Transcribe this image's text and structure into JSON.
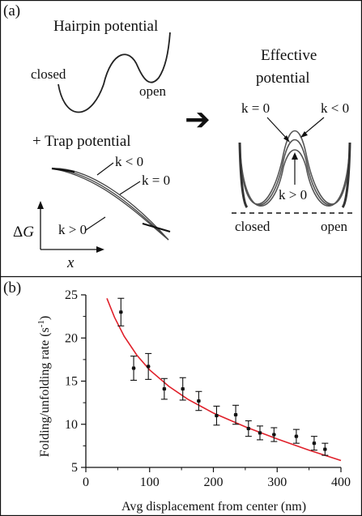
{
  "panel_a": {
    "label": "(a)",
    "hairpin_title": "Hairpin potential",
    "closed_label": "closed",
    "open_label": "open",
    "trap_title": "+ Trap potential",
    "trap_k_neg": "k < 0",
    "trap_k_zero": "k = 0",
    "trap_k_pos": "k > 0",
    "delta_g_symbol": "Δ",
    "delta_g_var": "G",
    "x_var": "x",
    "effective_title_line1": "Effective",
    "effective_title_line2": "potential",
    "eff_k_zero": "k = 0",
    "eff_k_neg": "k < 0",
    "eff_k_pos": "k > 0",
    "eff_closed": "closed",
    "eff_open": "open",
    "arrow_glyph": "➔"
  },
  "panel_b": {
    "label": "(b)"
  },
  "chart_data": {
    "type": "scatter",
    "xlabel": "Avg displacement from center (nm)",
    "ylabel": "Folding/unfolding rate (s",
    "ylabel_sup": "-1",
    "ylabel_close": ")",
    "xlim": [
      0,
      400
    ],
    "ylim": [
      5,
      25
    ],
    "xticks": [
      0,
      100,
      200,
      300,
      400
    ],
    "yticks": [
      5,
      10,
      15,
      20,
      25
    ],
    "points": [
      {
        "x": 55,
        "y": 23.0,
        "yerr": 1.6,
        "xerr": 3
      },
      {
        "x": 75,
        "y": 16.5,
        "yerr": 1.4,
        "xerr": 3
      },
      {
        "x": 98,
        "y": 16.7,
        "yerr": 1.5,
        "xerr": 3
      },
      {
        "x": 123,
        "y": 14.1,
        "yerr": 1.2,
        "xerr": 3
      },
      {
        "x": 152,
        "y": 14.1,
        "yerr": 1.3,
        "xerr": 3
      },
      {
        "x": 177,
        "y": 12.7,
        "yerr": 1.1,
        "xerr": 3
      },
      {
        "x": 205,
        "y": 11.0,
        "yerr": 1.1,
        "xerr": 3
      },
      {
        "x": 235,
        "y": 11.1,
        "yerr": 1.1,
        "xerr": 3
      },
      {
        "x": 255,
        "y": 9.5,
        "yerr": 0.9,
        "xerr": 3
      },
      {
        "x": 273,
        "y": 9.0,
        "yerr": 0.8,
        "xerr": 3
      },
      {
        "x": 295,
        "y": 8.8,
        "yerr": 0.8,
        "xerr": 3
      },
      {
        "x": 330,
        "y": 8.6,
        "yerr": 0.8,
        "xerr": 3
      },
      {
        "x": 358,
        "y": 7.8,
        "yerr": 0.8,
        "xerr": 3
      },
      {
        "x": 375,
        "y": 7.1,
        "yerr": 0.7,
        "xerr": 3
      }
    ],
    "fit": {
      "color": "#e0202a",
      "x": [
        33,
        45,
        60,
        80,
        100,
        130,
        160,
        200,
        250,
        300,
        350,
        400
      ],
      "y": [
        24.6,
        22.4,
        20.2,
        18.0,
        16.3,
        14.4,
        12.9,
        11.3,
        9.7,
        8.3,
        7.0,
        5.8
      ]
    },
    "marker_color": "#111111"
  }
}
